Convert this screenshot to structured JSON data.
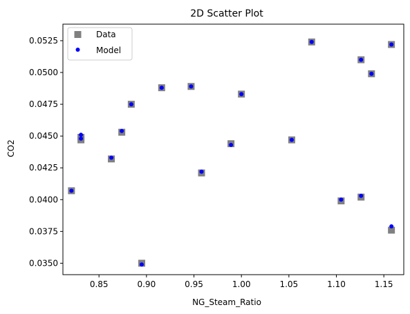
{
  "chart_data": {
    "type": "scatter",
    "title": "2D Scatter Plot",
    "xlabel": "NG_Steam_Ratio",
    "ylabel": "CO2",
    "xlim": [
      0.812,
      1.171
    ],
    "ylim": [
      0.0341,
      0.0538
    ],
    "xticks": [
      0.85,
      0.9,
      0.95,
      1.0,
      1.05,
      1.1,
      1.15
    ],
    "xtick_labels": [
      "0.85",
      "0.90",
      "0.95",
      "1.00",
      "1.05",
      "1.10",
      "1.15"
    ],
    "yticks": [
      0.035,
      0.0375,
      0.04,
      0.0425,
      0.045,
      0.0475,
      0.05,
      0.0525
    ],
    "ytick_labels": [
      "0.0350",
      "0.0375",
      "0.0400",
      "0.0425",
      "0.0450",
      "0.0475",
      "0.0500",
      "0.0525"
    ],
    "grid": false,
    "legend_position": "top-left",
    "series": [
      {
        "name": "Data",
        "marker": "square",
        "color": "#808080",
        "x": [
          0.821,
          0.831,
          0.831,
          0.863,
          0.874,
          0.884,
          0.895,
          0.916,
          0.947,
          0.958,
          0.989,
          1.0,
          1.053,
          1.074,
          1.105,
          1.126,
          1.126,
          1.137,
          1.158,
          1.158
        ],
        "y": [
          0.0407,
          0.0447,
          0.0449,
          0.0432,
          0.0453,
          0.0475,
          0.035,
          0.0488,
          0.0489,
          0.0421,
          0.0444,
          0.0483,
          0.0447,
          0.0524,
          0.0399,
          0.0402,
          0.051,
          0.0499,
          0.0522,
          0.0376
        ]
      },
      {
        "name": "Model",
        "marker": "circle",
        "color": "#0000ff",
        "x": [
          0.821,
          0.831,
          0.831,
          0.863,
          0.874,
          0.884,
          0.895,
          0.916,
          0.947,
          0.958,
          0.989,
          1.0,
          1.053,
          1.074,
          1.105,
          1.126,
          1.126,
          1.137,
          1.158,
          1.158
        ],
        "y": [
          0.0407,
          0.0448,
          0.0451,
          0.0433,
          0.0454,
          0.0475,
          0.0349,
          0.0488,
          0.0489,
          0.0422,
          0.0443,
          0.0483,
          0.0447,
          0.0524,
          0.04,
          0.0403,
          0.051,
          0.0499,
          0.0522,
          0.0379
        ]
      }
    ]
  }
}
